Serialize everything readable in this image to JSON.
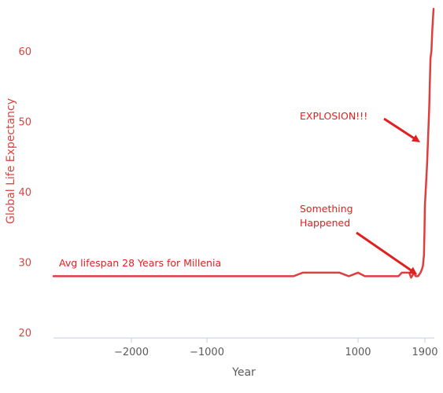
{
  "chart_data": {
    "type": "line",
    "xlabel": "Year",
    "ylabel": "Global Life Expectancy",
    "ylim": [
      20,
      66
    ],
    "yticks": [
      20,
      30,
      40,
      50,
      60
    ],
    "xticks": [
      {
        "value": -2000,
        "label": "−2000"
      },
      {
        "value": -1000,
        "label": "−1000"
      },
      {
        "value": 1000,
        "label": "1000"
      },
      {
        "value": 1900,
        "label": "1900"
      }
    ],
    "x_scale": "piecewise",
    "grid": false,
    "series": [
      {
        "color": "#e03d3d",
        "points": [
          [
            -3000,
            28
          ],
          [
            300,
            28
          ],
          [
            400,
            28.5
          ],
          [
            800,
            28.5
          ],
          [
            900,
            28
          ],
          [
            1000,
            28.5
          ],
          [
            1100,
            28
          ],
          [
            1600,
            28
          ],
          [
            1650,
            28.5
          ],
          [
            1740,
            28.5
          ],
          [
            1760,
            27.8
          ],
          [
            1790,
            28.5
          ],
          [
            1805,
            28
          ],
          [
            1830,
            28
          ],
          [
            1855,
            28.5
          ],
          [
            1870,
            29
          ],
          [
            1880,
            29.5
          ],
          [
            1890,
            31
          ],
          [
            1895,
            34
          ],
          [
            1900,
            38
          ],
          [
            1905,
            44
          ],
          [
            1910,
            52
          ],
          [
            1913,
            59
          ],
          [
            1915,
            60
          ],
          [
            1917,
            63
          ],
          [
            1920,
            66
          ]
        ]
      }
    ],
    "annotations": [
      {
        "text": "Avg lifespan 28 Years for Millenia",
        "lines": [
          "Avg lifespan 28 Years for Millenia"
        ],
        "arrow": false
      },
      {
        "text": "Something Happened",
        "lines": [
          "Something",
          "Happened"
        ],
        "arrow": true,
        "target": [
          1850,
          28.2
        ]
      },
      {
        "text": "EXPLOSION!!!",
        "lines": [
          "EXPLOSION!!!"
        ],
        "arrow": true,
        "target": [
          1880,
          47
        ]
      }
    ],
    "colors": {
      "line": "#e03d3d",
      "ytick": "#d9453f",
      "ylabel": "#d9453f",
      "xtick": "#5a5a5a",
      "xlabel": "#5a5a5a",
      "axis": "#cfd8e6",
      "annotation": "#e02020"
    }
  }
}
